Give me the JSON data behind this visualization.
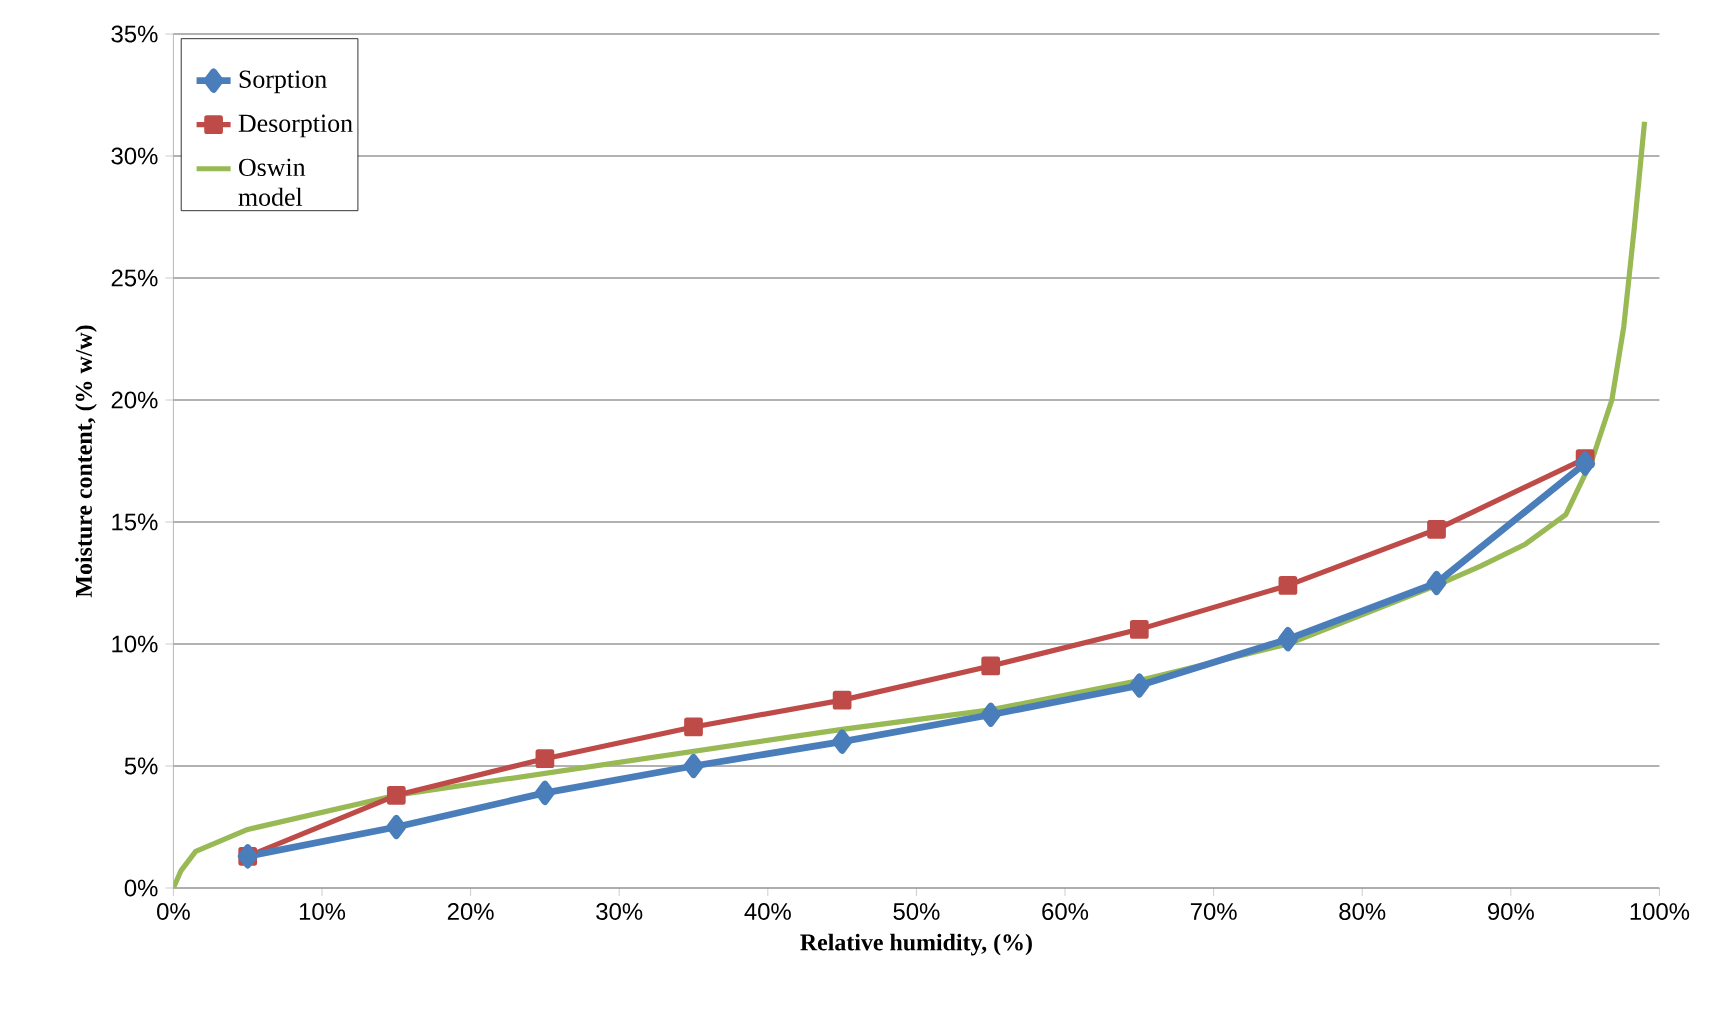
{
  "chart_data": {
    "type": "line",
    "xlabel": "Relative humidity, (%)",
    "ylabel": "Moisture content, (% w/w)",
    "xlim": [
      0,
      100
    ],
    "ylim": [
      0,
      35
    ],
    "xticks": [
      {
        "value": 0,
        "label": "0%"
      },
      {
        "value": 10,
        "label": "10%"
      },
      {
        "value": 20,
        "label": "20%"
      },
      {
        "value": 30,
        "label": "30%"
      },
      {
        "value": 40,
        "label": "40%"
      },
      {
        "value": 50,
        "label": "50%"
      },
      {
        "value": 60,
        "label": "60%"
      },
      {
        "value": 70,
        "label": "70%"
      },
      {
        "value": 80,
        "label": "80%"
      },
      {
        "value": 90,
        "label": "90%"
      },
      {
        "value": 100,
        "label": "100%"
      }
    ],
    "yticks": [
      {
        "value": 0,
        "label": "0%"
      },
      {
        "value": 5,
        "label": "5%"
      },
      {
        "value": 10,
        "label": "10%"
      },
      {
        "value": 15,
        "label": "15%"
      },
      {
        "value": 20,
        "label": "20%"
      },
      {
        "value": 25,
        "label": "25%"
      },
      {
        "value": 30,
        "label": "30%"
      },
      {
        "value": 35,
        "label": "35%"
      }
    ],
    "grid": "y",
    "legend": "top left",
    "series": [
      {
        "name": "Sorption",
        "color": "#4a7ebb",
        "marker": "diamond",
        "x": [
          5,
          15,
          25,
          35,
          45,
          55,
          65,
          75,
          85,
          95
        ],
        "values": [
          1.3,
          2.5,
          3.9,
          5.0,
          6.0,
          7.1,
          8.3,
          10.2,
          12.5,
          17.4
        ]
      },
      {
        "name": "Desorption",
        "color": "#be4b48",
        "marker": "square",
        "x": [
          5,
          15,
          25,
          35,
          45,
          55,
          65,
          75,
          85,
          95
        ],
        "values": [
          1.3,
          3.8,
          5.3,
          6.6,
          7.7,
          9.1,
          10.6,
          12.4,
          14.7,
          17.6
        ]
      },
      {
        "name": "Oswin model",
        "color": "#98b954",
        "marker": "none",
        "x": [
          0,
          0.5,
          1.5,
          5,
          15,
          25,
          35,
          45,
          55,
          65,
          75,
          85,
          88,
          91,
          93.7,
          95.5,
          96.8,
          97.6,
          98.3,
          99
        ],
        "values": [
          0,
          0.7,
          1.5,
          2.4,
          3.8,
          4.7,
          5.6,
          6.5,
          7.3,
          8.5,
          10.0,
          12.4,
          13.2,
          14.1,
          15.3,
          17.6,
          20,
          23,
          27,
          31.4
        ]
      }
    ]
  }
}
